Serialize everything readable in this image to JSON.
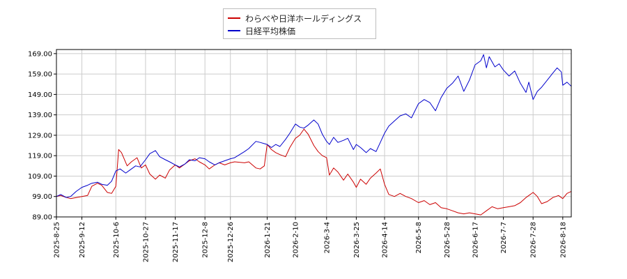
{
  "chart_data": {
    "type": "line",
    "title": "",
    "xlabel": "",
    "ylabel": "",
    "ylim": [
      89.0,
      171.0
    ],
    "y_ticks": [
      "89.00",
      "99.00",
      "109.00",
      "119.00",
      "129.00",
      "139.00",
      "149.00",
      "159.00",
      "169.00"
    ],
    "x_range": [
      "2025-08-25",
      "2026-08-24"
    ],
    "x_ticks": [
      "2025-8-25",
      "2025-9-12",
      "2025-10-6",
      "2025-10-27",
      "2025-11-17",
      "2025-12-8",
      "2025-12-26",
      "2026-1-21",
      "2026-2-10",
      "2026-3-4",
      "2026-3-25",
      "2026-4-14",
      "2026-5-8",
      "2026-5-28",
      "2026-6-17",
      "2026-7-7",
      "2026-7-28",
      "2026-8-18"
    ],
    "grid": true,
    "legend_position": "top-center",
    "series": [
      {
        "name": "わらべや日洋ホールディングス",
        "color": "#cc0000",
        "points": [
          [
            "2025-08-25",
            99.0
          ],
          [
            "2025-08-28",
            99.5
          ],
          [
            "2025-09-01",
            98.5
          ],
          [
            "2025-09-04",
            98.0
          ],
          [
            "2025-09-08",
            98.5
          ],
          [
            "2025-09-12",
            99.0
          ],
          [
            "2025-09-16",
            99.5
          ],
          [
            "2025-09-19",
            104.0
          ],
          [
            "2025-09-23",
            105.5
          ],
          [
            "2025-09-26",
            104.5
          ],
          [
            "2025-09-30",
            101.0
          ],
          [
            "2025-10-03",
            100.5
          ],
          [
            "2025-10-06",
            104.0
          ],
          [
            "2025-10-08",
            122.0
          ],
          [
            "2025-10-10",
            120.5
          ],
          [
            "2025-10-14",
            114.0
          ],
          [
            "2025-10-17",
            116.0
          ],
          [
            "2025-10-21",
            118.0
          ],
          [
            "2025-10-24",
            113.0
          ],
          [
            "2025-10-27",
            114.5
          ],
          [
            "2025-10-30",
            110.0
          ],
          [
            "2025-11-03",
            107.5
          ],
          [
            "2025-11-06",
            109.5
          ],
          [
            "2025-11-10",
            108.0
          ],
          [
            "2025-11-13",
            112.0
          ],
          [
            "2025-11-17",
            114.5
          ],
          [
            "2025-11-20",
            113.0
          ],
          [
            "2025-11-24",
            115.0
          ],
          [
            "2025-11-27",
            116.5
          ],
          [
            "2025-12-01",
            117.5
          ],
          [
            "2025-12-04",
            116.0
          ],
          [
            "2025-12-08",
            114.5
          ],
          [
            "2025-12-11",
            112.5
          ],
          [
            "2025-12-15",
            114.5
          ],
          [
            "2025-12-18",
            115.5
          ],
          [
            "2025-12-22",
            114.5
          ],
          [
            "2025-12-26",
            115.5
          ],
          [
            "2025-12-29",
            116.0
          ],
          [
            "2026-01-05",
            115.5
          ],
          [
            "2026-01-08",
            116.0
          ],
          [
            "2026-01-13",
            113.0
          ],
          [
            "2026-01-16",
            112.5
          ],
          [
            "2026-01-19",
            114.0
          ],
          [
            "2026-01-21",
            124.5
          ],
          [
            "2026-01-24",
            122.0
          ],
          [
            "2026-01-27",
            120.5
          ],
          [
            "2026-01-30",
            119.5
          ],
          [
            "2026-02-03",
            118.5
          ],
          [
            "2026-02-06",
            123.0
          ],
          [
            "2026-02-10",
            127.5
          ],
          [
            "2026-02-13",
            129.0
          ],
          [
            "2026-02-16",
            132.0
          ],
          [
            "2026-02-19",
            129.5
          ],
          [
            "2026-02-23",
            124.0
          ],
          [
            "2026-02-26",
            121.0
          ],
          [
            "2026-03-01",
            119.0
          ],
          [
            "2026-03-04",
            118.0
          ],
          [
            "2026-03-06",
            109.5
          ],
          [
            "2026-03-09",
            113.0
          ],
          [
            "2026-03-12",
            111.0
          ],
          [
            "2026-03-16",
            107.0
          ],
          [
            "2026-03-19",
            110.0
          ],
          [
            "2026-03-23",
            106.0
          ],
          [
            "2026-03-25",
            103.5
          ],
          [
            "2026-03-28",
            107.5
          ],
          [
            "2026-04-01",
            105.0
          ],
          [
            "2026-04-04",
            108.0
          ],
          [
            "2026-04-08",
            110.5
          ],
          [
            "2026-04-11",
            112.5
          ],
          [
            "2026-04-14",
            105.0
          ],
          [
            "2026-04-17",
            100.0
          ],
          [
            "2026-04-21",
            99.0
          ],
          [
            "2026-04-25",
            100.5
          ],
          [
            "2026-04-29",
            99.0
          ],
          [
            "2026-05-03",
            98.0
          ],
          [
            "2026-05-08",
            96.0
          ],
          [
            "2026-05-12",
            97.0
          ],
          [
            "2026-05-16",
            95.0
          ],
          [
            "2026-05-20",
            96.0
          ],
          [
            "2026-05-24",
            93.5
          ],
          [
            "2026-05-28",
            93.0
          ],
          [
            "2026-06-01",
            92.0
          ],
          [
            "2026-06-05",
            91.0
          ],
          [
            "2026-06-09",
            90.5
          ],
          [
            "2026-06-13",
            91.0
          ],
          [
            "2026-06-17",
            90.5
          ],
          [
            "2026-06-21",
            90.0
          ],
          [
            "2026-06-25",
            92.0
          ],
          [
            "2026-06-29",
            94.0
          ],
          [
            "2026-07-03",
            93.0
          ],
          [
            "2026-07-07",
            93.5
          ],
          [
            "2026-07-11",
            94.0
          ],
          [
            "2026-07-15",
            94.5
          ],
          [
            "2026-07-19",
            96.0
          ],
          [
            "2026-07-23",
            98.5
          ],
          [
            "2026-07-28",
            101.0
          ],
          [
            "2026-07-31",
            99.0
          ],
          [
            "2026-08-03",
            95.5
          ],
          [
            "2026-08-07",
            96.5
          ],
          [
            "2026-08-11",
            98.5
          ],
          [
            "2026-08-15",
            99.5
          ],
          [
            "2026-08-18",
            98.0
          ],
          [
            "2026-08-21",
            100.5
          ],
          [
            "2026-08-24",
            101.5
          ]
        ]
      },
      {
        "name": "日経平均株価",
        "color": "#0000cc",
        "points": [
          [
            "2025-08-25",
            99.0
          ],
          [
            "2025-08-28",
            100.0
          ],
          [
            "2025-09-01",
            98.5
          ],
          [
            "2025-09-04",
            99.0
          ],
          [
            "2025-09-08",
            101.5
          ],
          [
            "2025-09-12",
            103.5
          ],
          [
            "2025-09-16",
            104.5
          ],
          [
            "2025-09-19",
            105.5
          ],
          [
            "2025-09-23",
            106.0
          ],
          [
            "2025-09-26",
            105.0
          ],
          [
            "2025-09-30",
            104.5
          ],
          [
            "2025-10-03",
            106.5
          ],
          [
            "2025-10-06",
            111.5
          ],
          [
            "2025-10-09",
            112.5
          ],
          [
            "2025-10-13",
            110.5
          ],
          [
            "2025-10-16",
            112.0
          ],
          [
            "2025-10-20",
            114.0
          ],
          [
            "2025-10-23",
            113.5
          ],
          [
            "2025-10-27",
            117.0
          ],
          [
            "2025-10-30",
            120.0
          ],
          [
            "2025-11-03",
            121.5
          ],
          [
            "2025-11-06",
            118.5
          ],
          [
            "2025-11-10",
            117.0
          ],
          [
            "2025-11-13",
            116.0
          ],
          [
            "2025-11-17",
            114.5
          ],
          [
            "2025-11-20",
            113.5
          ],
          [
            "2025-11-24",
            115.0
          ],
          [
            "2025-11-27",
            117.0
          ],
          [
            "2025-12-01",
            116.5
          ],
          [
            "2025-12-04",
            118.0
          ],
          [
            "2025-12-08",
            117.5
          ],
          [
            "2025-12-11",
            116.0
          ],
          [
            "2025-12-15",
            114.5
          ],
          [
            "2025-12-18",
            115.5
          ],
          [
            "2025-12-22",
            116.5
          ],
          [
            "2025-12-26",
            117.5
          ],
          [
            "2025-12-29",
            118.0
          ],
          [
            "2026-01-05",
            121.0
          ],
          [
            "2026-01-08",
            122.5
          ],
          [
            "2026-01-13",
            126.0
          ],
          [
            "2026-01-16",
            125.5
          ],
          [
            "2026-01-21",
            124.5
          ],
          [
            "2026-01-24",
            123.0
          ],
          [
            "2026-01-27",
            124.5
          ],
          [
            "2026-01-30",
            123.5
          ],
          [
            "2026-02-03",
            127.0
          ],
          [
            "2026-02-06",
            130.0
          ],
          [
            "2026-02-10",
            134.5
          ],
          [
            "2026-02-13",
            133.0
          ],
          [
            "2026-02-16",
            132.5
          ],
          [
            "2026-02-19",
            134.0
          ],
          [
            "2026-02-23",
            136.5
          ],
          [
            "2026-02-26",
            134.5
          ],
          [
            "2026-03-01",
            129.5
          ],
          [
            "2026-03-04",
            126.0
          ],
          [
            "2026-03-06",
            124.5
          ],
          [
            "2026-03-09",
            128.0
          ],
          [
            "2026-03-12",
            125.5
          ],
          [
            "2026-03-16",
            126.5
          ],
          [
            "2026-03-19",
            127.5
          ],
          [
            "2026-03-23",
            122.0
          ],
          [
            "2026-03-25",
            124.5
          ],
          [
            "2026-03-28",
            123.0
          ],
          [
            "2026-04-01",
            120.5
          ],
          [
            "2026-04-04",
            122.5
          ],
          [
            "2026-04-08",
            121.0
          ],
          [
            "2026-04-11",
            125.5
          ],
          [
            "2026-04-14",
            130.0
          ],
          [
            "2026-04-17",
            133.5
          ],
          [
            "2026-04-21",
            136.0
          ],
          [
            "2026-04-25",
            138.5
          ],
          [
            "2026-04-29",
            139.5
          ],
          [
            "2026-05-03",
            137.5
          ],
          [
            "2026-05-08",
            144.5
          ],
          [
            "2026-05-12",
            146.5
          ],
          [
            "2026-05-16",
            145.0
          ],
          [
            "2026-05-20",
            141.0
          ],
          [
            "2026-05-24",
            147.5
          ],
          [
            "2026-05-28",
            152.0
          ],
          [
            "2026-06-01",
            154.5
          ],
          [
            "2026-06-05",
            158.0
          ],
          [
            "2026-06-09",
            150.5
          ],
          [
            "2026-06-13",
            156.0
          ],
          [
            "2026-06-17",
            163.5
          ],
          [
            "2026-06-21",
            165.5
          ],
          [
            "2026-06-23",
            168.5
          ],
          [
            "2026-06-25",
            162.0
          ],
          [
            "2026-06-27",
            167.5
          ],
          [
            "2026-07-01",
            162.5
          ],
          [
            "2026-07-04",
            164.0
          ],
          [
            "2026-07-07",
            161.0
          ],
          [
            "2026-07-11",
            158.0
          ],
          [
            "2026-07-15",
            160.5
          ],
          [
            "2026-07-19",
            154.5
          ],
          [
            "2026-07-23",
            150.0
          ],
          [
            "2026-07-25",
            155.0
          ],
          [
            "2026-07-28",
            146.5
          ],
          [
            "2026-07-31",
            150.5
          ],
          [
            "2026-08-03",
            152.5
          ],
          [
            "2026-08-07",
            156.0
          ],
          [
            "2026-08-11",
            159.5
          ],
          [
            "2026-08-14",
            162.0
          ],
          [
            "2026-08-17",
            160.0
          ],
          [
            "2026-08-18",
            153.5
          ],
          [
            "2026-08-21",
            155.0
          ],
          [
            "2026-08-24",
            153.0
          ]
        ]
      }
    ]
  }
}
